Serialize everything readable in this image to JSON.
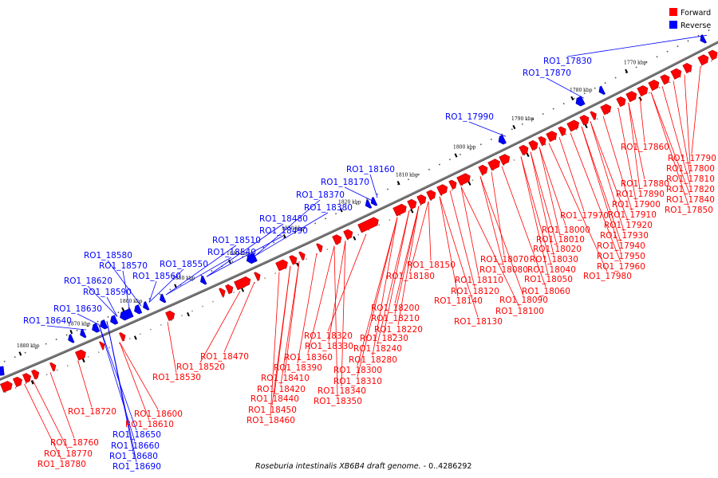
{
  "legend": {
    "forward": {
      "label": "Forward",
      "color": "#ff0000"
    },
    "reverse": {
      "label": "Reverse",
      "color": "#0000ff"
    }
  },
  "caption": {
    "italic": "Roseburia intestinalis XB6B4 draft genome.",
    "range": " - 0..4286292"
  },
  "ticks": [
    "1770 kbp",
    "1780 kbp",
    "1790 kbp",
    "1800 kbp",
    "1810 kbp",
    "1820 kbp",
    "1830 kbp",
    "1840 kbp",
    "1850 kbp",
    "1860 kbp",
    "1870 kbp",
    "1880 kbp"
  ],
  "reverse_labels": [
    "RO1_17830",
    "RO1_17870",
    "RO1_17990",
    "RO1_18160",
    "RO1_18170",
    "RO1_18370",
    "RO1_18380",
    "RO1_18480",
    "RO1_18490",
    "RO1_18510",
    "RO1_18540",
    "RO1_18550",
    "RO1_18560",
    "RO1_18580",
    "RO1_18570",
    "RO1_18620",
    "RO1_18590",
    "RO1_18630",
    "RO1_18640",
    "RO1_18650",
    "RO1_18660",
    "RO1_18680",
    "RO1_18690"
  ],
  "forward_labels": [
    "RO1_17790",
    "RO1_17800",
    "RO1_17810",
    "RO1_17820",
    "RO1_17840",
    "RO1_17850",
    "RO1_17860",
    "RO1_17880",
    "RO1_17890",
    "RO1_17900",
    "RO1_17910",
    "RO1_17920",
    "RO1_17930",
    "RO1_17940",
    "RO1_17950",
    "RO1_17960",
    "RO1_17970",
    "RO1_17980",
    "RO1_18000",
    "RO1_18010",
    "RO1_18020",
    "RO1_18030",
    "RO1_18040",
    "RO1_18050",
    "RO1_18060",
    "RO1_18070",
    "RO1_18080",
    "RO1_18090",
    "RO1_18100",
    "RO1_18110",
    "RO1_18120",
    "RO1_18130",
    "RO1_18140",
    "RO1_18150",
    "RO1_18180",
    "RO1_18200",
    "RO1_18210",
    "RO1_18220",
    "RO1_18230",
    "RO1_18240",
    "RO1_18280",
    "RO1_18300",
    "RO1_18310",
    "RO1_18320",
    "RO1_18330",
    "RO1_18340",
    "RO1_18350",
    "RO1_18360",
    "RO1_18390",
    "RO1_18410",
    "RO1_18420",
    "RO1_18440",
    "RO1_18450",
    "RO1_18460",
    "RO1_18470",
    "RO1_18520",
    "RO1_18530",
    "RO1_18600",
    "RO1_18610",
    "RO1_18720",
    "RO1_18760",
    "RO1_18770",
    "RO1_18780"
  ]
}
